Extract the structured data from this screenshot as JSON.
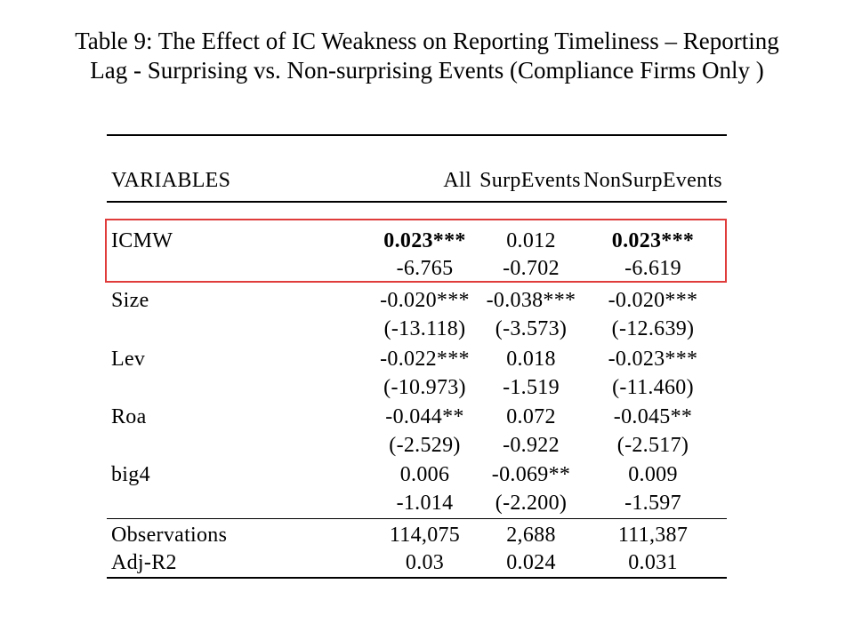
{
  "title": {
    "line1": "Table 9: The Effect of IC Weakness on Reporting Timeliness – Reporting",
    "line2": "Lag - Surprising vs. Non-surprising Events (Compliance Firms Only )"
  },
  "header": {
    "variables": "VARIABLES",
    "col_all": "All",
    "col_surp": "SurpEvents",
    "col_nonsurp": "NonSurpEvents"
  },
  "rows": [
    {
      "var": "ICMW",
      "all": "0.023***",
      "surp": "0.012",
      "nonsurp": "0.023***"
    },
    {
      "var": "",
      "all": "-6.765",
      "surp": "-0.702",
      "nonsurp": "-6.619"
    },
    {
      "var": "Size",
      "all": "-0.020***",
      "surp": "-0.038***",
      "nonsurp": "-0.020***"
    },
    {
      "var": "",
      "all": "(-13.118)",
      "surp": "(-3.573)",
      "nonsurp": "(-12.639)"
    },
    {
      "var": "Lev",
      "all": "-0.022***",
      "surp": "0.018",
      "nonsurp": "-0.023***"
    },
    {
      "var": "",
      "all": "(-10.973)",
      "surp": "-1.519",
      "nonsurp": "(-11.460)"
    },
    {
      "var": "Roa",
      "all": "-0.044**",
      "surp": "0.072",
      "nonsurp": "-0.045**"
    },
    {
      "var": "",
      "all": "(-2.529)",
      "surp": "-0.922",
      "nonsurp": "(-2.517)"
    },
    {
      "var": "big4",
      "all": "0.006",
      "surp": "-0.069**",
      "nonsurp": "0.009"
    },
    {
      "var": "",
      "all": "-1.014",
      "surp": "(-2.200)",
      "nonsurp": "-1.597"
    }
  ],
  "stats": [
    {
      "var": "Observations",
      "all": "114,075",
      "surp": "2,688",
      "nonsurp": "111,387"
    },
    {
      "var": "Adj-R2",
      "all": "0.03",
      "surp": "0.024",
      "nonsurp": "0.031"
    }
  ],
  "highlight_color": "#e03c3c"
}
